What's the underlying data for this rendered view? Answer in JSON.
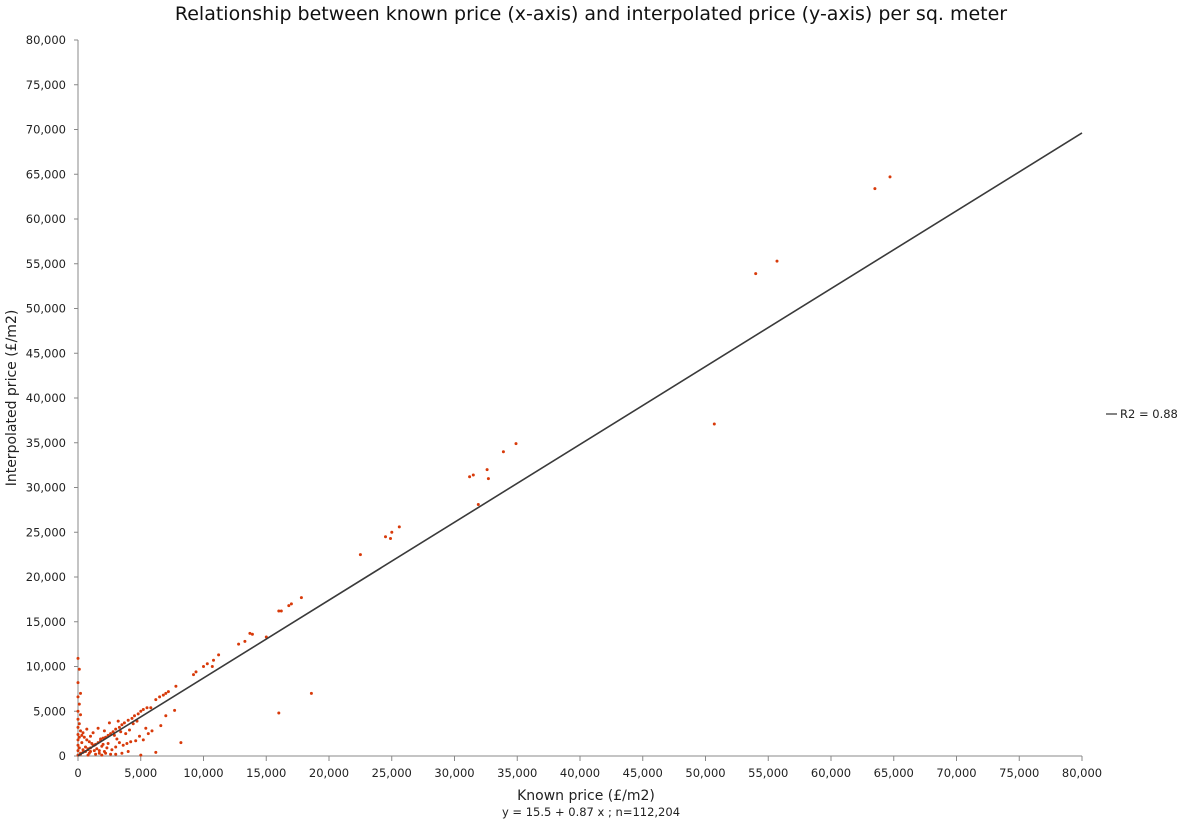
{
  "chart_data": {
    "type": "scatter",
    "title": "Relationship between known price (x-axis) and interpolated price (y-axis) per sq. meter",
    "xlabel": "Known price (£/m2)",
    "ylabel": "Interpolated price (£/m2)",
    "subtitle_below_x": "y = 15.5 + 0.87 x ; n=112,204",
    "xlim": [
      0,
      80000
    ],
    "ylim": [
      0,
      80000
    ],
    "x_ticks": [
      "0",
      "5,000",
      "10,000",
      "15,000",
      "20,000",
      "25,000",
      "30,000",
      "35,000",
      "40,000",
      "45,000",
      "50,000",
      "55,000",
      "60,000",
      "65,000",
      "70,000",
      "75,000",
      "80,000"
    ],
    "y_ticks": [
      "0",
      "5,000",
      "10,000",
      "15,000",
      "20,000",
      "25,000",
      "30,000",
      "35,000",
      "40,000",
      "45,000",
      "50,000",
      "55,000",
      "60,000",
      "65,000",
      "70,000",
      "75,000",
      "80,000"
    ],
    "grid": false,
    "legend_position": "right",
    "colors": {
      "points": "#d83a0a",
      "fit_line": "#3a3a3a",
      "axis": "#888888"
    },
    "fit_line": {
      "name": "R2 = 0.88",
      "intercept": 15.5,
      "slope": 0.87
    },
    "points": [
      [
        64700,
        64700
      ],
      [
        63500,
        63400
      ],
      [
        55700,
        55300
      ],
      [
        54000,
        53900
      ],
      [
        50700,
        37100
      ],
      [
        34900,
        34900
      ],
      [
        33900,
        34000
      ],
      [
        32600,
        32000
      ],
      [
        32700,
        31000
      ],
      [
        31500,
        31400
      ],
      [
        31200,
        31200
      ],
      [
        31900,
        28100
      ],
      [
        25600,
        25600
      ],
      [
        25000,
        25000
      ],
      [
        24900,
        24300
      ],
      [
        24500,
        24500
      ],
      [
        22500,
        22500
      ],
      [
        17800,
        17700
      ],
      [
        17000,
        17000
      ],
      [
        16800,
        16800
      ],
      [
        16200,
        16200
      ],
      [
        16000,
        16200
      ],
      [
        15000,
        13300
      ],
      [
        13900,
        13600
      ],
      [
        13700,
        13700
      ],
      [
        13300,
        12800
      ],
      [
        12800,
        12500
      ],
      [
        18600,
        7000
      ],
      [
        16000,
        4800
      ],
      [
        11200,
        11300
      ],
      [
        10800,
        10700
      ],
      [
        10700,
        10000
      ],
      [
        10300,
        10300
      ],
      [
        10000,
        10000
      ],
      [
        9400,
        9400
      ],
      [
        9200,
        9100
      ],
      [
        7800,
        7800
      ],
      [
        7200,
        7200
      ],
      [
        7000,
        7000
      ],
      [
        6800,
        6800
      ],
      [
        6500,
        6600
      ],
      [
        6200,
        6300
      ],
      [
        7700,
        5100
      ],
      [
        7000,
        4500
      ],
      [
        8200,
        1500
      ],
      [
        5800,
        5400
      ],
      [
        5500,
        5400
      ],
      [
        5200,
        5200
      ],
      [
        5000,
        5000
      ],
      [
        4800,
        4700
      ],
      [
        4500,
        4500
      ],
      [
        4300,
        4200
      ],
      [
        4000,
        4000
      ],
      [
        3700,
        3700
      ],
      [
        3500,
        3500
      ],
      [
        3300,
        3200
      ],
      [
        3000,
        3000
      ],
      [
        2800,
        2700
      ],
      [
        2600,
        2500
      ],
      [
        2400,
        2300
      ],
      [
        2200,
        2100
      ],
      [
        2000,
        2000
      ],
      [
        1800,
        1700
      ],
      [
        1600,
        1500
      ],
      [
        1400,
        1300
      ],
      [
        1200,
        1200
      ],
      [
        1000,
        900
      ],
      [
        800,
        800
      ],
      [
        600,
        500
      ],
      [
        400,
        400
      ],
      [
        200,
        200
      ],
      [
        5900,
        2800
      ],
      [
        5600,
        2500
      ],
      [
        5200,
        1800
      ],
      [
        4900,
        2200
      ],
      [
        4600,
        1700
      ],
      [
        4200,
        1600
      ],
      [
        3900,
        1400
      ],
      [
        3600,
        1200
      ],
      [
        3300,
        1500
      ],
      [
        3000,
        1000
      ],
      [
        2700,
        700
      ],
      [
        2400,
        1400
      ],
      [
        2100,
        500
      ],
      [
        1900,
        1100
      ],
      [
        5000,
        100
      ],
      [
        6200,
        400
      ],
      [
        3500,
        300
      ],
      [
        2600,
        200
      ],
      [
        1700,
        300
      ],
      [
        1300,
        600
      ],
      [
        900,
        300
      ],
      [
        0,
        10900
      ],
      [
        100,
        9700
      ],
      [
        0,
        8200
      ],
      [
        200,
        7000
      ],
      [
        0,
        6600
      ],
      [
        100,
        5800
      ],
      [
        0,
        5000
      ],
      [
        200,
        4600
      ],
      [
        0,
        4100
      ],
      [
        100,
        3600
      ],
      [
        0,
        3200
      ],
      [
        200,
        2800
      ],
      [
        0,
        2400
      ],
      [
        100,
        2100
      ],
      [
        0,
        1800
      ],
      [
        300,
        1500
      ],
      [
        0,
        1200
      ],
      [
        100,
        900
      ],
      [
        0,
        600
      ],
      [
        200,
        300
      ],
      [
        0,
        100
      ],
      [
        400,
        2600
      ],
      [
        500,
        2100
      ],
      [
        700,
        1800
      ],
      [
        900,
        1600
      ],
      [
        1100,
        1400
      ],
      [
        1300,
        1200
      ],
      [
        600,
        1000
      ],
      [
        800,
        700
      ],
      [
        1000,
        500
      ],
      [
        1500,
        800
      ],
      [
        1800,
        1900
      ],
      [
        2000,
        1300
      ],
      [
        2300,
        900
      ],
      [
        2900,
        2300
      ],
      [
        3100,
        1900
      ],
      [
        3400,
        2700
      ],
      [
        3800,
        2500
      ],
      [
        4100,
        2900
      ],
      [
        4400,
        3600
      ],
      [
        2500,
        3700
      ],
      [
        1200,
        2600
      ],
      [
        1600,
        3100
      ],
      [
        700,
        3000
      ],
      [
        300,
        2300
      ],
      [
        1400,
        200
      ],
      [
        2200,
        300
      ],
      [
        3000,
        200
      ],
      [
        4000,
        500
      ],
      [
        1900,
        100
      ],
      [
        800,
        100
      ],
      [
        400,
        700
      ],
      [
        6600,
        3400
      ],
      [
        5400,
        3100
      ],
      [
        4700,
        3900
      ],
      [
        3200,
        3900
      ],
      [
        2100,
        2800
      ],
      [
        1000,
        2200
      ],
      [
        1700,
        600
      ]
    ]
  }
}
